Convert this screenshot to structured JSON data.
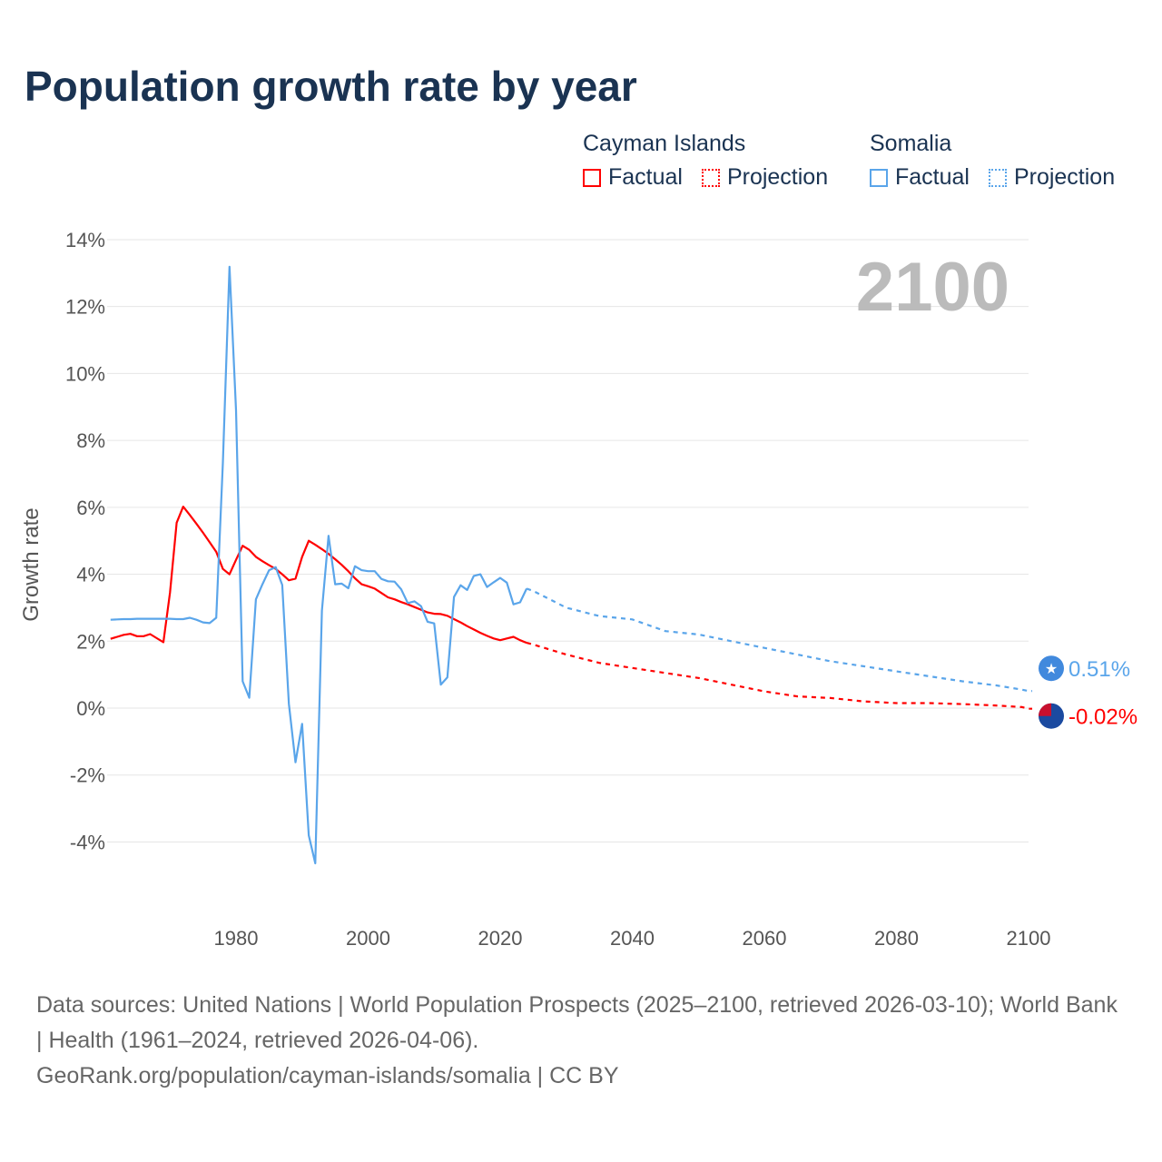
{
  "title": "Population growth rate by year",
  "legend": {
    "groups": [
      {
        "name": "Cayman Islands",
        "color": "#ff0000",
        "factual": "Factual",
        "projection": "Projection"
      },
      {
        "name": "Somalia",
        "color": "#5aa5ea",
        "factual": "Factual",
        "projection": "Projection"
      }
    ]
  },
  "footer": {
    "sources": "Data sources: United Nations | World Population Prospects (2025–2100, retrieved 2026-03-10); World Bank | Health (1961–2024, retrieved 2026-04-06).",
    "credit": "GeoRank.org/population/cayman-islands/somalia | CC BY"
  },
  "chart_data": {
    "type": "line",
    "title": "Population growth rate by year",
    "ylabel": "Growth rate",
    "xlabel": "",
    "current_year_label": "2100",
    "xlim": [
      1961,
      2100
    ],
    "ylim": [
      -5.5,
      14
    ],
    "x_ticks": [
      1980,
      2000,
      2020,
      2040,
      2060,
      2080,
      2100
    ],
    "y_ticks": [
      -4,
      -2,
      0,
      2,
      4,
      6,
      8,
      10,
      12,
      14
    ],
    "y_tick_labels": [
      "-4%",
      "-2%",
      "0%",
      "2%",
      "4%",
      "6%",
      "8%",
      "10%",
      "12%",
      "14%"
    ],
    "grid": true,
    "legend_position": "top-right",
    "series": [
      {
        "name": "Cayman Islands",
        "color": "#ff0000",
        "end_label": "-0.02%",
        "end_value": -0.02,
        "factual": {
          "start": 1961,
          "values": [
            2.07,
            2.13,
            2.19,
            2.22,
            2.15,
            2.15,
            2.21,
            2.09,
            1.97,
            3.46,
            5.54,
            6.02,
            5.77,
            5.51,
            5.24,
            4.96,
            4.67,
            4.16,
            4.0,
            4.43,
            4.85,
            4.73,
            4.52,
            4.39,
            4.27,
            4.16,
            4.0,
            3.82,
            3.87,
            4.52,
            5.0,
            4.88,
            4.75,
            4.61,
            4.45,
            4.28,
            4.09,
            3.88,
            3.7,
            3.64,
            3.57,
            3.44,
            3.31,
            3.25,
            3.17,
            3.1,
            3.02,
            2.94,
            2.86,
            2.82,
            2.81,
            2.76,
            2.66,
            2.56,
            2.45,
            2.35,
            2.25,
            2.16,
            2.08,
            2.03,
            2.08,
            2.13,
            2.03,
            1.95
          ]
        },
        "projection": {
          "years": [
            2024,
            2025,
            2030,
            2035,
            2040,
            2045,
            2050,
            2055,
            2060,
            2065,
            2070,
            2075,
            2080,
            2085,
            2090,
            2095,
            2099,
            2100
          ],
          "values": [
            1.95,
            1.9,
            1.6,
            1.35,
            1.2,
            1.05,
            0.9,
            0.7,
            0.5,
            0.35,
            0.3,
            0.2,
            0.15,
            0.15,
            0.12,
            0.08,
            0.03,
            -0.02
          ]
        }
      },
      {
        "name": "Somalia",
        "color": "#5aa5ea",
        "end_label": "0.51%",
        "end_value": 0.51,
        "factual": {
          "start": 1961,
          "values": [
            2.64,
            2.65,
            2.66,
            2.66,
            2.67,
            2.67,
            2.67,
            2.67,
            2.67,
            2.67,
            2.66,
            2.66,
            2.7,
            2.64,
            2.56,
            2.54,
            2.7,
            7.33,
            13.19,
            8.9,
            0.8,
            0.31,
            3.25,
            3.7,
            4.12,
            4.21,
            3.68,
            0.13,
            -1.62,
            -0.47,
            -3.8,
            -4.64,
            2.91,
            5.15,
            3.7,
            3.72,
            3.58,
            4.24,
            4.12,
            4.09,
            4.09,
            3.86,
            3.79,
            3.78,
            3.55,
            3.14,
            3.19,
            3.05,
            2.58,
            2.53,
            0.7,
            0.92,
            3.32,
            3.67,
            3.53,
            3.95,
            4.0,
            3.62,
            3.76,
            3.89,
            3.75,
            3.1,
            3.16,
            3.57
          ]
        },
        "projection": {
          "years": [
            2024,
            2025,
            2030,
            2035,
            2040,
            2045,
            2050,
            2055,
            2060,
            2065,
            2070,
            2075,
            2080,
            2085,
            2090,
            2095,
            2099,
            2100
          ],
          "values": [
            3.57,
            3.5,
            3.0,
            2.75,
            2.65,
            2.3,
            2.2,
            2.0,
            1.8,
            1.6,
            1.4,
            1.25,
            1.1,
            0.95,
            0.8,
            0.68,
            0.55,
            0.51
          ]
        }
      }
    ]
  }
}
